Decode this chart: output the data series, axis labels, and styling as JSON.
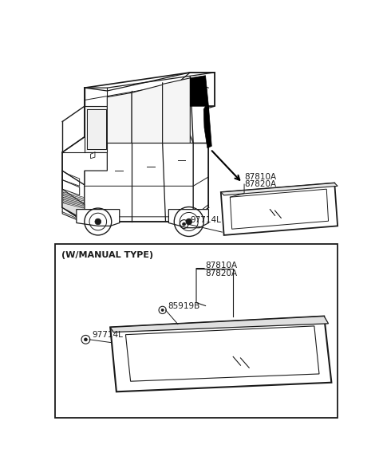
{
  "bg_color": "#ffffff",
  "line_color": "#1a1a1a",
  "labels": {
    "87810A": "87810A",
    "87820A": "87820A",
    "97714L_top": "97714L",
    "manual_type_box": "(W/MANUAL TYPE)",
    "87810A_bot": "87810A",
    "87820A_bot": "87820A",
    "85919B": "85919B",
    "97714L_bot": "97714L"
  },
  "fig_width": 4.8,
  "fig_height": 5.97,
  "dpi": 100
}
